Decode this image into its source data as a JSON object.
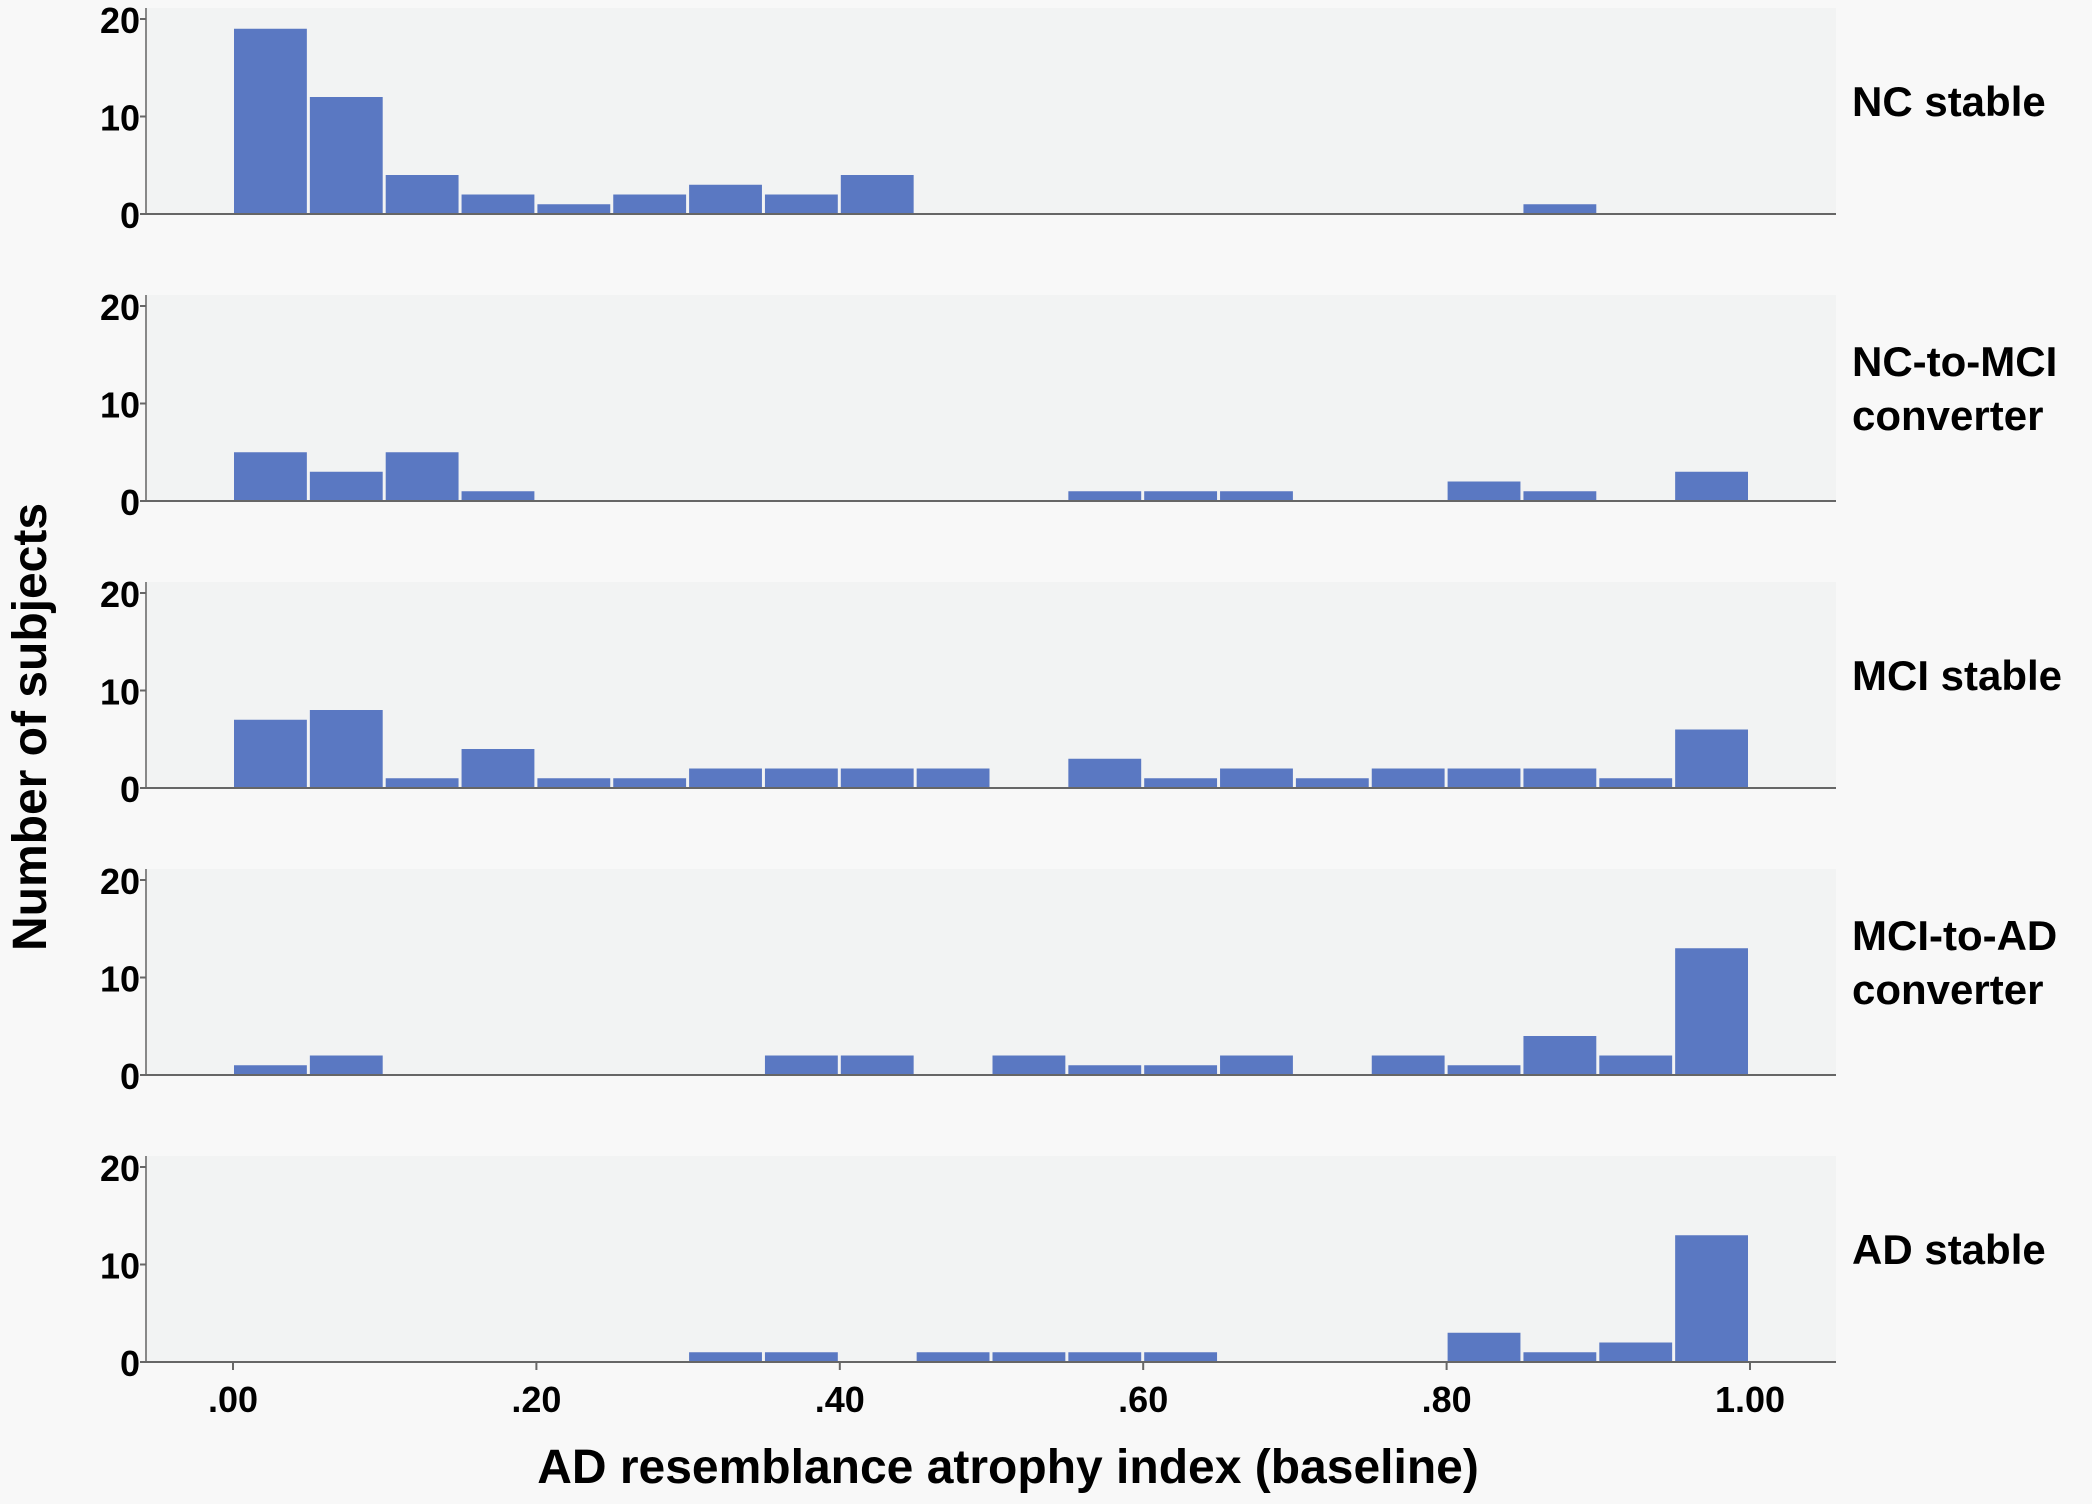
{
  "chart_data": {
    "type": "bar",
    "subtype": "histogram-small-multiples",
    "title": "",
    "xlabel": "AD resemblance atrophy index (baseline)",
    "ylabel": "Number of subjects",
    "xlim": [
      -0.09,
      1.06
    ],
    "ylim": [
      0,
      21
    ],
    "bin_width": 0.05,
    "bin_starts": [
      0.0,
      0.05,
      0.1,
      0.15,
      0.2,
      0.25,
      0.3,
      0.35,
      0.4,
      0.45,
      0.5,
      0.55,
      0.6,
      0.65,
      0.7,
      0.75,
      0.8,
      0.85,
      0.9,
      0.95
    ],
    "x_ticks": [
      0.0,
      0.2,
      0.4,
      0.6,
      0.8,
      1.0
    ],
    "x_tick_labels": [
      ".00",
      ".20",
      ".40",
      ".60",
      ".80",
      "1.00"
    ],
    "y_ticks": [
      0,
      10,
      20
    ],
    "y_tick_labels": [
      "0",
      "10",
      "20"
    ],
    "bar_color": "#5a78c2",
    "panel_background": "#f2f3f3",
    "grid": false,
    "legend": "none",
    "series": [
      {
        "name": "NC stable",
        "label_lines": [
          "NC stable"
        ],
        "values": [
          19,
          12,
          4,
          2,
          1,
          2,
          3,
          2,
          4,
          0,
          0,
          0,
          0,
          0,
          0,
          0,
          0,
          1,
          0,
          0
        ]
      },
      {
        "name": "NC-to-MCI converter",
        "label_lines": [
          "NC-to-MCI",
          "converter"
        ],
        "values": [
          5,
          3,
          5,
          1,
          0,
          0,
          0,
          0,
          0,
          0,
          0,
          1,
          1,
          1,
          0,
          0,
          2,
          1,
          0,
          3
        ]
      },
      {
        "name": "MCI stable",
        "label_lines": [
          "MCI stable"
        ],
        "values": [
          7,
          8,
          1,
          4,
          1,
          1,
          2,
          2,
          2,
          2,
          0,
          3,
          1,
          2,
          1,
          2,
          2,
          2,
          1,
          6
        ]
      },
      {
        "name": "MCI-to-AD converter",
        "label_lines": [
          "MCI-to-AD",
          "converter"
        ],
        "values": [
          1,
          2,
          0,
          0,
          0,
          0,
          0,
          2,
          2,
          0,
          2,
          1,
          1,
          2,
          0,
          2,
          1,
          4,
          2,
          13
        ]
      },
      {
        "name": "AD stable",
        "label_lines": [
          "AD stable"
        ],
        "values": [
          0,
          0,
          0,
          0,
          0,
          0,
          1,
          1,
          0,
          1,
          1,
          1,
          1,
          0,
          0,
          0,
          3,
          1,
          2,
          13
        ]
      }
    ]
  }
}
